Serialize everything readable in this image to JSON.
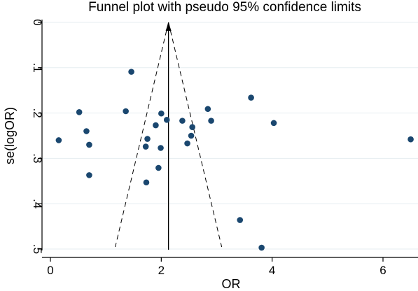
{
  "chart_data": {
    "type": "scatter",
    "title": "Funnel plot with pseudo 95% confidence limits",
    "xlabel": "OR",
    "ylabel": "se(logOR)",
    "xlim": [
      -0.1,
      6.6
    ],
    "ylim": [
      0,
      0.5
    ],
    "y_reversed": true,
    "y_tick_labels_rotated": true,
    "grid": true,
    "x_ticks": [
      0,
      2,
      4,
      6
    ],
    "y_ticks": [
      0,
      0.1,
      0.2,
      0.3,
      0.4,
      0.5
    ],
    "x_tick_labels": [
      "0",
      "2",
      "4",
      "6"
    ],
    "y_tick_labels": [
      "0",
      ".1",
      ".2",
      ".3",
      ".4",
      ".5"
    ],
    "pooled_or": 2.13,
    "ci_lower_at_max_se": 1.17,
    "ci_upper_at_max_se": 3.09,
    "marker_color": "#1a476f",
    "points": [
      {
        "x": 0.15,
        "y": 0.26
      },
      {
        "x": 0.52,
        "y": 0.198
      },
      {
        "x": 0.65,
        "y": 0.24
      },
      {
        "x": 0.7,
        "y": 0.27
      },
      {
        "x": 0.7,
        "y": 0.337
      },
      {
        "x": 1.36,
        "y": 0.196
      },
      {
        "x": 1.46,
        "y": 0.109
      },
      {
        "x": 1.72,
        "y": 0.274
      },
      {
        "x": 1.75,
        "y": 0.257
      },
      {
        "x": 1.73,
        "y": 0.353
      },
      {
        "x": 1.9,
        "y": 0.227
      },
      {
        "x": 1.95,
        "y": 0.321
      },
      {
        "x": 1.99,
        "y": 0.277
      },
      {
        "x": 2.0,
        "y": 0.201
      },
      {
        "x": 2.1,
        "y": 0.215
      },
      {
        "x": 2.38,
        "y": 0.217
      },
      {
        "x": 2.47,
        "y": 0.267
      },
      {
        "x": 2.54,
        "y": 0.25
      },
      {
        "x": 2.56,
        "y": 0.231
      },
      {
        "x": 2.84,
        "y": 0.191
      },
      {
        "x": 2.9,
        "y": 0.217
      },
      {
        "x": 3.42,
        "y": 0.436
      },
      {
        "x": 3.62,
        "y": 0.166
      },
      {
        "x": 3.81,
        "y": 0.497
      },
      {
        "x": 4.03,
        "y": 0.222
      },
      {
        "x": 6.5,
        "y": 0.258
      }
    ]
  }
}
